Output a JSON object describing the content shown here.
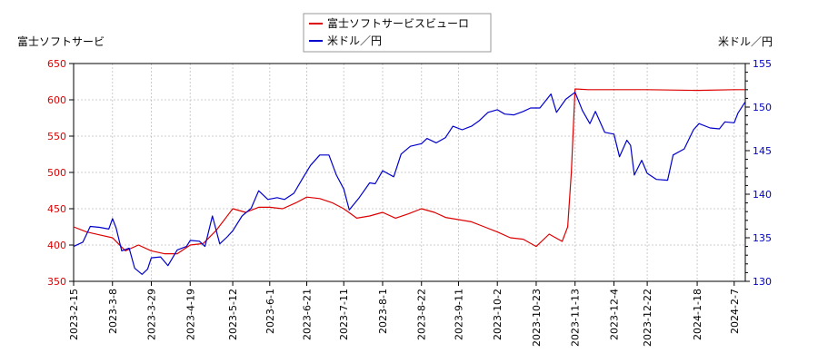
{
  "chart_data": {
    "type": "line",
    "legend": {
      "placement": "top-center",
      "entries": [
        "富士ソフトサービスビューロ",
        "米ドル／円"
      ]
    },
    "left_axis_label": "富士ソフトサービ",
    "right_axis_label": "米ドル／円",
    "grid": true,
    "x_ticks": [
      "2023-2-15",
      "2023-3-8",
      "2023-3-29",
      "2023-4-19",
      "2023-5-12",
      "2023-6-1",
      "2023-6-21",
      "2023-7-11",
      "2023-8-1",
      "2023-8-22",
      "2023-9-11",
      "2023-10-2",
      "2023-10-23",
      "2023-11-13",
      "2023-12-4",
      "2023-12-22",
      "2024-1-18",
      "2024-2-7"
    ],
    "y_left": {
      "ylim": [
        350,
        650
      ],
      "ticks": [
        350,
        400,
        450,
        500,
        550,
        600,
        650
      ]
    },
    "y_right": {
      "ylim": [
        130,
        155
      ],
      "ticks": [
        130,
        135,
        140,
        145,
        150,
        155
      ]
    },
    "series": [
      {
        "name": "富士ソフトサービスビューロ",
        "axis": "left",
        "color": "#dd0000",
        "points": [
          [
            "2023-2-15",
            425
          ],
          [
            "2023-2-22",
            418
          ],
          [
            "2023-3-1",
            414
          ],
          [
            "2023-3-8",
            410
          ],
          [
            "2023-3-15",
            392
          ],
          [
            "2023-3-22",
            400
          ],
          [
            "2023-3-29",
            392
          ],
          [
            "2023-4-5",
            388
          ],
          [
            "2023-4-12",
            388
          ],
          [
            "2023-4-19",
            400
          ],
          [
            "2023-4-26",
            402
          ],
          [
            "2023-5-3",
            420
          ],
          [
            "2023-5-12",
            450
          ],
          [
            "2023-5-19",
            445
          ],
          [
            "2023-5-26",
            452
          ],
          [
            "2023-6-1",
            452
          ],
          [
            "2023-6-8",
            450
          ],
          [
            "2023-6-15",
            458
          ],
          [
            "2023-6-21",
            466
          ],
          [
            "2023-6-28",
            464
          ],
          [
            "2023-7-5",
            458
          ],
          [
            "2023-7-11",
            450
          ],
          [
            "2023-7-18",
            437
          ],
          [
            "2023-7-25",
            440
          ],
          [
            "2023-8-1",
            445
          ],
          [
            "2023-8-8",
            437
          ],
          [
            "2023-8-15",
            443
          ],
          [
            "2023-8-22",
            450
          ],
          [
            "2023-8-29",
            445
          ],
          [
            "2023-9-4",
            438
          ],
          [
            "2023-9-11",
            435
          ],
          [
            "2023-9-18",
            432
          ],
          [
            "2023-9-25",
            425
          ],
          [
            "2023-10-2",
            418
          ],
          [
            "2023-10-9",
            410
          ],
          [
            "2023-10-16",
            408
          ],
          [
            "2023-10-23",
            398
          ],
          [
            "2023-10-30",
            415
          ],
          [
            "2023-11-6",
            405
          ],
          [
            "2023-11-9",
            425
          ],
          [
            "2023-11-11",
            500
          ],
          [
            "2023-11-13",
            615
          ],
          [
            "2023-11-20",
            614
          ],
          [
            "2023-12-4",
            614
          ],
          [
            "2023-12-22",
            614
          ],
          [
            "2024-1-18",
            613
          ],
          [
            "2024-2-7",
            614
          ],
          [
            "2024-2-13",
            614
          ]
        ]
      },
      {
        "name": "米ドル／円",
        "axis": "right",
        "color": "#0000cc",
        "points": [
          [
            "2023-2-15",
            134.0
          ],
          [
            "2023-2-20",
            134.5
          ],
          [
            "2023-2-24",
            136.3
          ],
          [
            "2023-3-1",
            136.2
          ],
          [
            "2023-3-6",
            136.0
          ],
          [
            "2023-3-8",
            137.2
          ],
          [
            "2023-3-10",
            136.1
          ],
          [
            "2023-3-13",
            133.5
          ],
          [
            "2023-3-17",
            133.8
          ],
          [
            "2023-3-20",
            131.5
          ],
          [
            "2023-3-24",
            130.8
          ],
          [
            "2023-3-27",
            131.4
          ],
          [
            "2023-3-29",
            132.7
          ],
          [
            "2023-4-3",
            132.8
          ],
          [
            "2023-4-7",
            131.8
          ],
          [
            "2023-4-12",
            133.6
          ],
          [
            "2023-4-17",
            134.0
          ],
          [
            "2023-4-19",
            134.7
          ],
          [
            "2023-4-24",
            134.6
          ],
          [
            "2023-4-27",
            134.0
          ],
          [
            "2023-5-1",
            137.5
          ],
          [
            "2023-5-5",
            134.3
          ],
          [
            "2023-5-9",
            135.1
          ],
          [
            "2023-5-12",
            135.8
          ],
          [
            "2023-5-17",
            137.5
          ],
          [
            "2023-5-22",
            138.4
          ],
          [
            "2023-5-26",
            140.4
          ],
          [
            "2023-5-31",
            139.4
          ],
          [
            "2023-6-5",
            139.6
          ],
          [
            "2023-6-9",
            139.4
          ],
          [
            "2023-6-14",
            140.1
          ],
          [
            "2023-6-19",
            141.9
          ],
          [
            "2023-6-23",
            143.3
          ],
          [
            "2023-6-28",
            144.5
          ],
          [
            "2023-7-3",
            144.5
          ],
          [
            "2023-7-7",
            142.2
          ],
          [
            "2023-7-11",
            140.6
          ],
          [
            "2023-7-14",
            138.2
          ],
          [
            "2023-7-19",
            139.5
          ],
          [
            "2023-7-25",
            141.3
          ],
          [
            "2023-7-28",
            141.2
          ],
          [
            "2023-8-1",
            142.7
          ],
          [
            "2023-8-7",
            142.0
          ],
          [
            "2023-8-11",
            144.6
          ],
          [
            "2023-8-16",
            145.5
          ],
          [
            "2023-8-22",
            145.8
          ],
          [
            "2023-8-25",
            146.4
          ],
          [
            "2023-8-30",
            145.9
          ],
          [
            "2023-9-4",
            146.5
          ],
          [
            "2023-9-8",
            147.8
          ],
          [
            "2023-9-13",
            147.4
          ],
          [
            "2023-9-18",
            147.8
          ],
          [
            "2023-9-22",
            148.4
          ],
          [
            "2023-9-27",
            149.4
          ],
          [
            "2023-10-2",
            149.7
          ],
          [
            "2023-10-6",
            149.2
          ],
          [
            "2023-10-11",
            149.1
          ],
          [
            "2023-10-16",
            149.5
          ],
          [
            "2023-10-20",
            149.9
          ],
          [
            "2023-10-25",
            149.9
          ],
          [
            "2023-10-31",
            151.5
          ],
          [
            "2023-11-3",
            149.4
          ],
          [
            "2023-11-8",
            150.9
          ],
          [
            "2023-11-13",
            151.7
          ],
          [
            "2023-11-17",
            149.6
          ],
          [
            "2023-11-21",
            148.1
          ],
          [
            "2023-11-24",
            149.5
          ],
          [
            "2023-11-29",
            147.1
          ],
          [
            "2023-12-4",
            146.9
          ],
          [
            "2023-12-7",
            144.3
          ],
          [
            "2023-12-11",
            146.2
          ],
          [
            "2023-12-13",
            145.6
          ],
          [
            "2023-12-15",
            142.2
          ],
          [
            "2023-12-19",
            143.9
          ],
          [
            "2023-12-22",
            142.4
          ],
          [
            "2023-12-27",
            141.7
          ],
          [
            "2024-1-2",
            141.6
          ],
          [
            "2024-1-5",
            144.5
          ],
          [
            "2024-1-11",
            145.2
          ],
          [
            "2024-1-16",
            147.4
          ],
          [
            "2024-1-19",
            148.1
          ],
          [
            "2024-1-25",
            147.6
          ],
          [
            "2024-1-30",
            147.5
          ],
          [
            "2024-2-2",
            148.3
          ],
          [
            "2024-2-7",
            148.2
          ],
          [
            "2024-2-9",
            149.3
          ],
          [
            "2024-2-13",
            150.6
          ]
        ]
      }
    ]
  }
}
